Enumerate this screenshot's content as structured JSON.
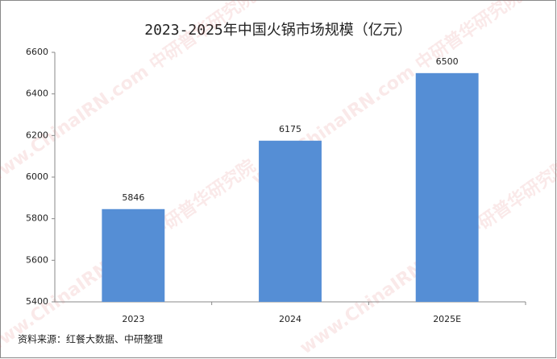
{
  "chart_data": {
    "type": "bar",
    "title": "2023-2025年中国火锅市场规模（亿元）",
    "categories": [
      "2023",
      "2024",
      "2025E"
    ],
    "values": [
      5846,
      6175,
      6500
    ],
    "color": "#558ed5",
    "ylim": [
      5400,
      6600
    ],
    "yticks": [
      5400,
      5600,
      5800,
      6000,
      6200,
      6400,
      6600
    ],
    "grid": false,
    "source": "资料来源：红餐大数据、中研整理",
    "watermark": "www.ChinaIRN.com 中研普华研究院"
  }
}
